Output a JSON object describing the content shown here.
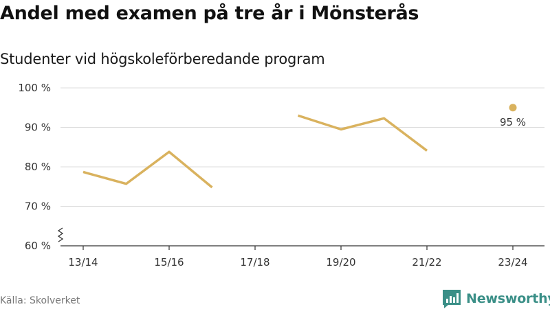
{
  "header": {
    "title": "Andel med examen på tre år i Mönsterås",
    "subtitle": "Studenter vid högskoleförberedande program"
  },
  "footer": {
    "source": "Källa: Skolverket",
    "brand": "Newsworthy",
    "brand_icon": "newsworthy-logo-icon"
  },
  "colors": {
    "series": "#d9b25e",
    "grid": "#dddddd",
    "axis": "#333333",
    "brand": "#3a8f87"
  },
  "chart_data": {
    "type": "line",
    "title": "Andel med examen på tre år i Mönsterås",
    "subtitle": "Studenter vid högskoleförberedande program",
    "x": [
      "13/14",
      "14/15",
      "15/16",
      "16/17",
      "17/18",
      "18/19",
      "19/20",
      "20/21",
      "21/22",
      "22/23",
      "23/24"
    ],
    "x_tick_labels": [
      "13/14",
      "15/16",
      "17/18",
      "19/20",
      "21/22",
      "23/24"
    ],
    "series": [
      {
        "values": [
          78.7,
          75.7,
          83.8,
          74.8,
          null,
          93.0,
          89.5,
          92.3,
          84.1,
          null,
          95.0
        ]
      }
    ],
    "annotations": [
      {
        "x": "23/24",
        "label": "95 %"
      }
    ],
    "y_ticks": [
      60,
      70,
      80,
      90,
      100
    ],
    "y_tick_labels": [
      "60 %",
      "70 %",
      "80 %",
      "90 %",
      "100 %"
    ],
    "ylim": [
      60,
      100
    ],
    "y_axis_break": true,
    "grid": true,
    "legend": "none"
  }
}
